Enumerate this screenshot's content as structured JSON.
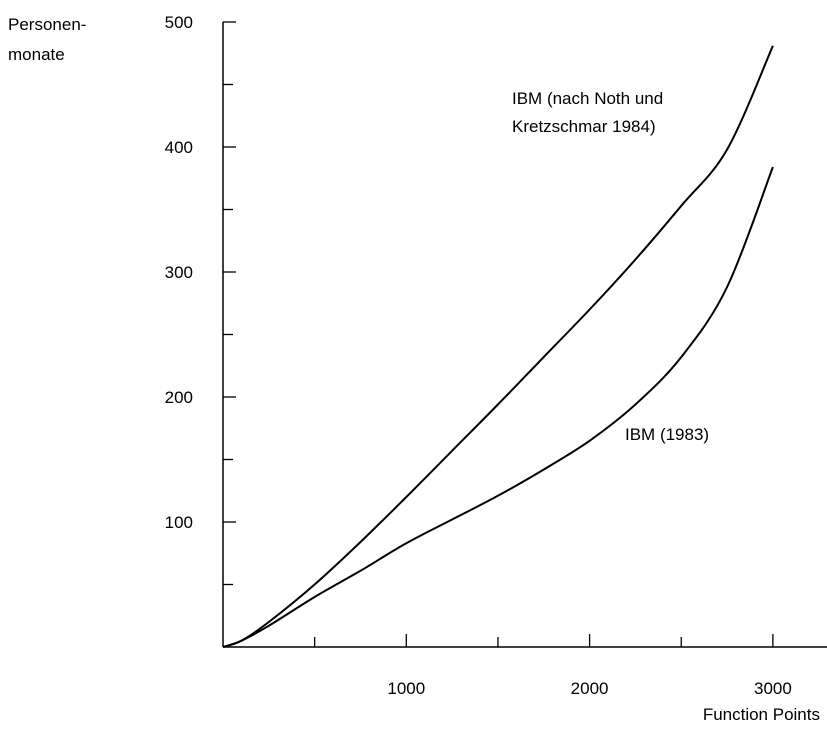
{
  "chart_data": {
    "type": "line",
    "title": "",
    "xlabel": "Function Points",
    "ylabel": [
      "Personen-",
      "monate"
    ],
    "xlim": [
      0,
      3250
    ],
    "ylim": [
      0,
      500
    ],
    "x_ticks_major": [
      1000,
      2000,
      3000
    ],
    "x_ticks_minor": [
      500,
      1500,
      2500
    ],
    "y_ticks_major": [
      100,
      200,
      300,
      400,
      500
    ],
    "y_ticks_minor": [
      50,
      150,
      250,
      350,
      450
    ],
    "grid": false,
    "legend": "none",
    "series": [
      {
        "name_lines": [
          "IBM (nach Noth und",
          "Kretzschmar 1984)"
        ],
        "color": "#000000",
        "points": [
          [
            0,
            0
          ],
          [
            100,
            5
          ],
          [
            250,
            20
          ],
          [
            500,
            50
          ],
          [
            750,
            84
          ],
          [
            1000,
            120
          ],
          [
            1250,
            157
          ],
          [
            1500,
            194
          ],
          [
            1750,
            232
          ],
          [
            2000,
            270
          ],
          [
            2250,
            310
          ],
          [
            2500,
            353
          ],
          [
            2750,
            398
          ],
          [
            3000,
            481
          ]
        ]
      },
      {
        "name_lines": [
          "IBM (1983)"
        ],
        "color": "#000000",
        "points": [
          [
            0,
            0
          ],
          [
            100,
            5
          ],
          [
            250,
            17
          ],
          [
            500,
            40
          ],
          [
            750,
            61
          ],
          [
            1000,
            83
          ],
          [
            1250,
            102
          ],
          [
            1500,
            121
          ],
          [
            1750,
            142
          ],
          [
            2000,
            165
          ],
          [
            2250,
            194
          ],
          [
            2500,
            232
          ],
          [
            2750,
            288
          ],
          [
            3000,
            384
          ]
        ]
      }
    ]
  }
}
